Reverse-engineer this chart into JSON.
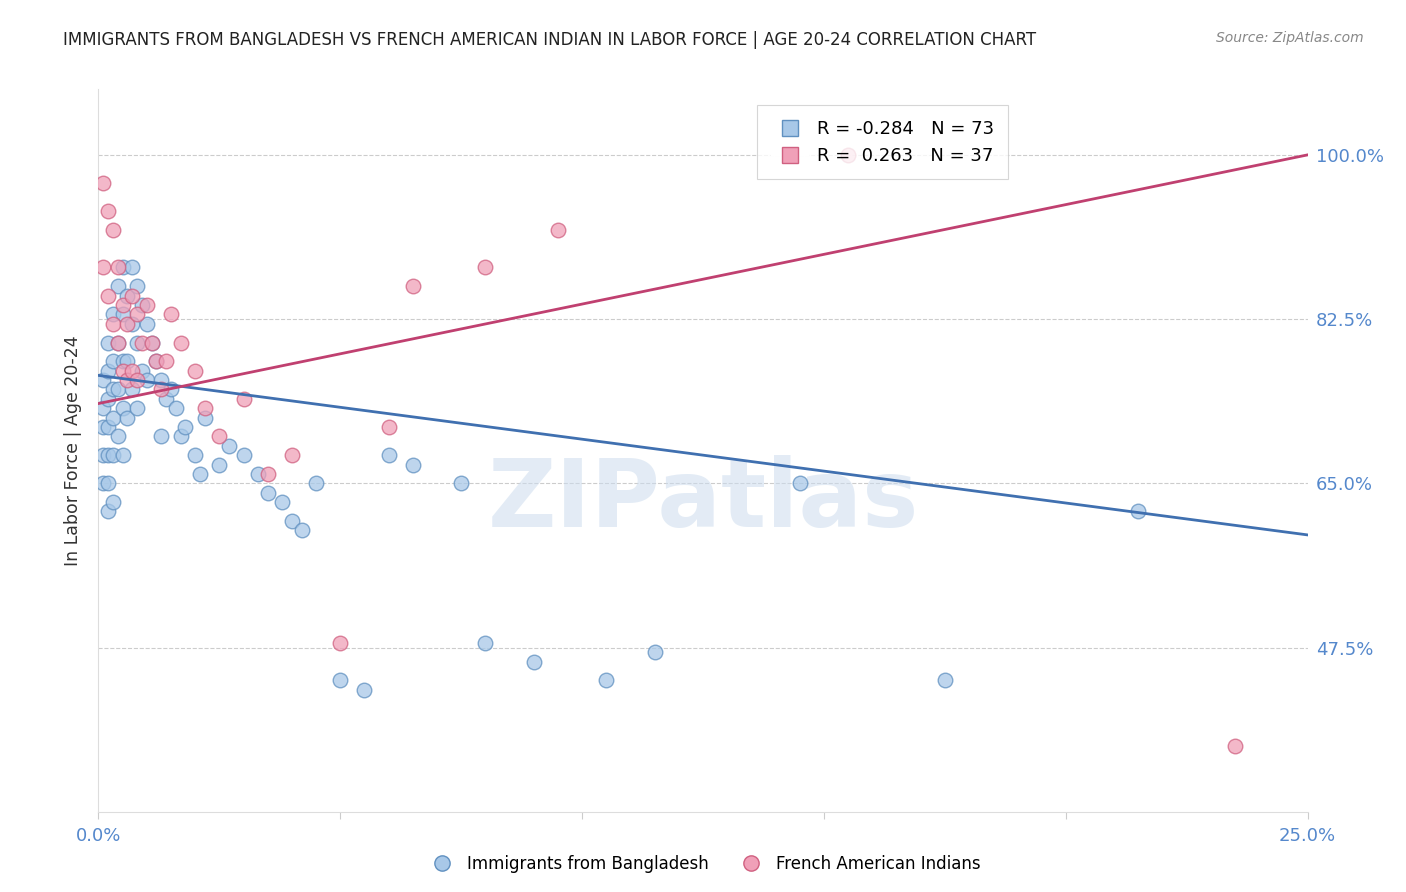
{
  "title": "IMMIGRANTS FROM BANGLADESH VS FRENCH AMERICAN INDIAN IN LABOR FORCE | AGE 20-24 CORRELATION CHART",
  "source": "Source: ZipAtlas.com",
  "ylabel": "In Labor Force | Age 20-24",
  "xlim_min": 0.0,
  "xlim_max": 0.25,
  "ylim_min": 0.3,
  "ylim_max": 1.07,
  "yticks": [
    0.475,
    0.65,
    0.825,
    1.0
  ],
  "ytick_labels": [
    "47.5%",
    "65.0%",
    "82.5%",
    "100.0%"
  ],
  "blue_R": -0.284,
  "blue_N": 73,
  "pink_R": 0.263,
  "pink_N": 37,
  "blue_fill_color": "#A8C8E8",
  "pink_fill_color": "#F0A0B8",
  "blue_edge_color": "#6090C0",
  "pink_edge_color": "#D06080",
  "blue_line_color": "#4070B0",
  "pink_line_color": "#C04070",
  "legend_label_blue": "Immigrants from Bangladesh",
  "legend_label_pink": "French American Indians",
  "watermark": "ZIPatlas",
  "blue_line_x0": 0.0,
  "blue_line_y0": 0.765,
  "blue_line_x1": 0.25,
  "blue_line_y1": 0.595,
  "pink_line_x0": 0.0,
  "pink_line_y0": 0.735,
  "pink_line_x1": 0.25,
  "pink_line_y1": 1.0,
  "blue_points_x": [
    0.001,
    0.001,
    0.001,
    0.001,
    0.001,
    0.002,
    0.002,
    0.002,
    0.002,
    0.002,
    0.002,
    0.002,
    0.003,
    0.003,
    0.003,
    0.003,
    0.003,
    0.003,
    0.004,
    0.004,
    0.004,
    0.004,
    0.005,
    0.005,
    0.005,
    0.005,
    0.005,
    0.006,
    0.006,
    0.006,
    0.007,
    0.007,
    0.007,
    0.008,
    0.008,
    0.008,
    0.009,
    0.009,
    0.01,
    0.01,
    0.011,
    0.012,
    0.013,
    0.013,
    0.014,
    0.015,
    0.016,
    0.017,
    0.018,
    0.02,
    0.021,
    0.022,
    0.025,
    0.027,
    0.03,
    0.033,
    0.035,
    0.038,
    0.04,
    0.042,
    0.045,
    0.05,
    0.055,
    0.06,
    0.065,
    0.075,
    0.08,
    0.09,
    0.105,
    0.115,
    0.145,
    0.175,
    0.215
  ],
  "blue_points_y": [
    0.76,
    0.73,
    0.71,
    0.68,
    0.65,
    0.8,
    0.77,
    0.74,
    0.71,
    0.68,
    0.65,
    0.62,
    0.83,
    0.78,
    0.75,
    0.72,
    0.68,
    0.63,
    0.86,
    0.8,
    0.75,
    0.7,
    0.88,
    0.83,
    0.78,
    0.73,
    0.68,
    0.85,
    0.78,
    0.72,
    0.88,
    0.82,
    0.75,
    0.86,
    0.8,
    0.73,
    0.84,
    0.77,
    0.82,
    0.76,
    0.8,
    0.78,
    0.76,
    0.7,
    0.74,
    0.75,
    0.73,
    0.7,
    0.71,
    0.68,
    0.66,
    0.72,
    0.67,
    0.69,
    0.68,
    0.66,
    0.64,
    0.63,
    0.61,
    0.6,
    0.65,
    0.44,
    0.43,
    0.68,
    0.67,
    0.65,
    0.48,
    0.46,
    0.44,
    0.47,
    0.65,
    0.44,
    0.62
  ],
  "pink_points_x": [
    0.001,
    0.001,
    0.002,
    0.002,
    0.003,
    0.003,
    0.004,
    0.004,
    0.005,
    0.005,
    0.006,
    0.006,
    0.007,
    0.007,
    0.008,
    0.008,
    0.009,
    0.01,
    0.011,
    0.012,
    0.013,
    0.014,
    0.015,
    0.017,
    0.02,
    0.022,
    0.025,
    0.03,
    0.035,
    0.04,
    0.05,
    0.06,
    0.065,
    0.08,
    0.095,
    0.155,
    0.235
  ],
  "pink_points_y": [
    0.97,
    0.88,
    0.94,
    0.85,
    0.92,
    0.82,
    0.88,
    0.8,
    0.84,
    0.77,
    0.82,
    0.76,
    0.85,
    0.77,
    0.83,
    0.76,
    0.8,
    0.84,
    0.8,
    0.78,
    0.75,
    0.78,
    0.83,
    0.8,
    0.77,
    0.73,
    0.7,
    0.74,
    0.66,
    0.68,
    0.48,
    0.71,
    0.86,
    0.88,
    0.92,
    1.0,
    0.37
  ]
}
